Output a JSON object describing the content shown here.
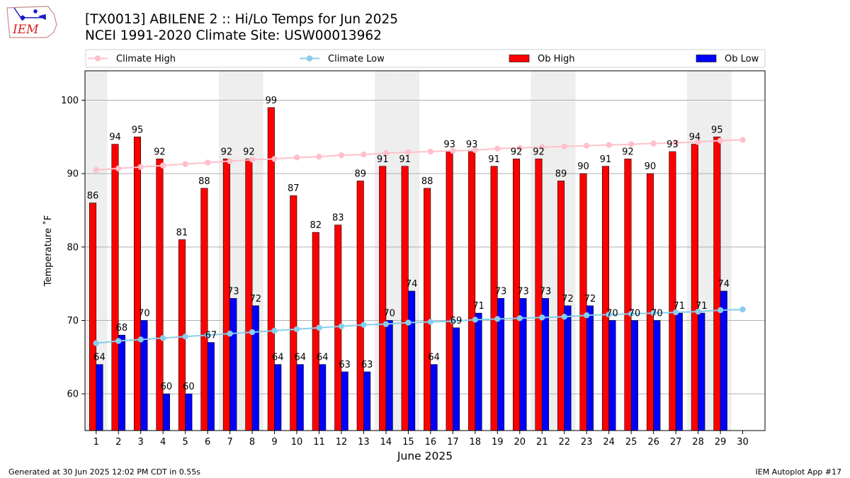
{
  "header": {
    "title_line1": "[TX0013] ABILENE 2 :: Hi/Lo Temps for Jun 2025",
    "title_line2": "NCEI 1991-2020 Climate Site: USW00013962"
  },
  "logo": {
    "text": "IEM",
    "icon": "iem-iowa-logo"
  },
  "footer": {
    "generated": "Generated at 30 Jun 2025 12:02 PM CDT in 0.55s",
    "app": "IEM Autoplot App #17"
  },
  "chart_data": {
    "type": "bar",
    "xlabel": "June 2025",
    "ylabel": "Temperature ˚F",
    "ylim": [
      55,
      104
    ],
    "yticks": [
      60,
      70,
      80,
      90,
      100
    ],
    "grid": true,
    "legend_position": "top",
    "days": [
      1,
      2,
      3,
      4,
      5,
      6,
      7,
      8,
      9,
      10,
      11,
      12,
      13,
      14,
      15,
      16,
      17,
      18,
      19,
      20,
      21,
      22,
      23,
      24,
      25,
      26,
      27,
      28,
      29,
      30
    ],
    "weekend_days": [
      1,
      7,
      8,
      14,
      15,
      21,
      22,
      28,
      29
    ],
    "series": [
      {
        "name": "Ob High",
        "kind": "bar",
        "color": "#ff0000",
        "values": [
          86,
          94,
          95,
          92,
          81,
          88,
          92,
          92,
          99,
          87,
          82,
          83,
          89,
          91,
          91,
          88,
          93,
          93,
          91,
          92,
          92,
          89,
          90,
          91,
          92,
          90,
          93,
          94,
          95,
          null
        ]
      },
      {
        "name": "Ob Low",
        "kind": "bar",
        "color": "#0000ff",
        "values": [
          64,
          68,
          70,
          60,
          60,
          67,
          73,
          72,
          64,
          64,
          64,
          63,
          63,
          70,
          74,
          64,
          69,
          71,
          73,
          73,
          73,
          72,
          72,
          70,
          70,
          70,
          71,
          71,
          74,
          null
        ]
      },
      {
        "name": "Climate High",
        "kind": "line",
        "color": "#ffc0cb",
        "values": [
          90.5,
          90.7,
          90.9,
          91.1,
          91.3,
          91.5,
          91.7,
          91.9,
          92.0,
          92.2,
          92.3,
          92.5,
          92.6,
          92.8,
          92.9,
          93.0,
          93.1,
          93.2,
          93.4,
          93.5,
          93.6,
          93.7,
          93.8,
          93.9,
          94.0,
          94.1,
          94.2,
          94.3,
          94.5,
          94.6
        ]
      },
      {
        "name": "Climate Low",
        "kind": "line",
        "color": "#87ceeb",
        "values": [
          66.9,
          67.2,
          67.4,
          67.6,
          67.8,
          68.0,
          68.2,
          68.4,
          68.6,
          68.8,
          69.0,
          69.2,
          69.4,
          69.5,
          69.7,
          69.8,
          69.9,
          70.1,
          70.2,
          70.3,
          70.4,
          70.5,
          70.7,
          70.8,
          70.9,
          71.0,
          71.1,
          71.2,
          71.4,
          71.5
        ]
      }
    ]
  }
}
